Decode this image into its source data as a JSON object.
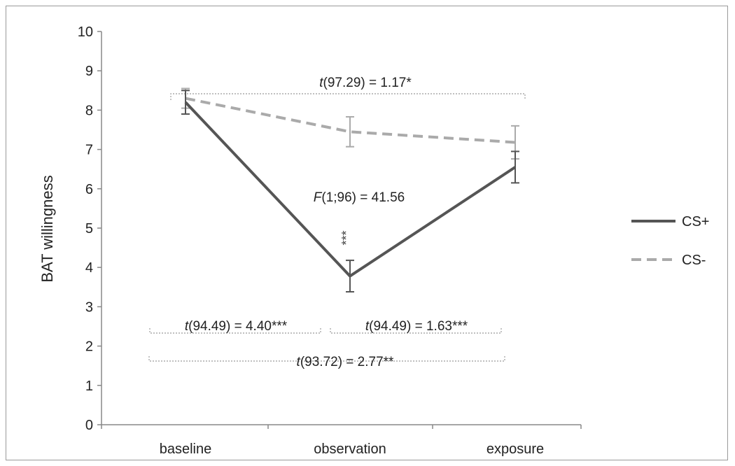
{
  "chart_data": {
    "type": "line",
    "ylabel": "BAT willingness",
    "xlabel": "",
    "ylim": [
      0,
      10
    ],
    "yticks": [
      0,
      1,
      2,
      3,
      4,
      5,
      6,
      7,
      8,
      9,
      10
    ],
    "categories": [
      "baseline",
      "observation",
      "exposure"
    ],
    "series": [
      {
        "name": "CS+",
        "values": [
          8.2,
          3.78,
          6.55
        ],
        "errors": [
          0.3,
          0.4,
          0.4
        ],
        "style": "solid",
        "color": "#555555"
      },
      {
        "name": "CS-",
        "values": [
          8.3,
          7.45,
          7.18
        ],
        "errors": [
          0.25,
          0.38,
          0.42
        ],
        "style": "dashed",
        "color": "#aaaaaa"
      }
    ],
    "legend_position": "right",
    "annotations": {
      "f_test": {
        "prefix": "F",
        "rest": "(1;96) = 41.56"
      },
      "obs_stars": "***",
      "t_top": {
        "prefix": "t",
        "rest": "(97.29) = 1.17*"
      },
      "t_left": {
        "prefix": "t",
        "rest": "(94.49) = 4.40***"
      },
      "t_right": {
        "prefix": "t",
        "rest": "(94.49) = 1.63***"
      },
      "t_bottom": {
        "prefix": "t",
        "rest": "(93.72) = 2.77**"
      }
    }
  }
}
